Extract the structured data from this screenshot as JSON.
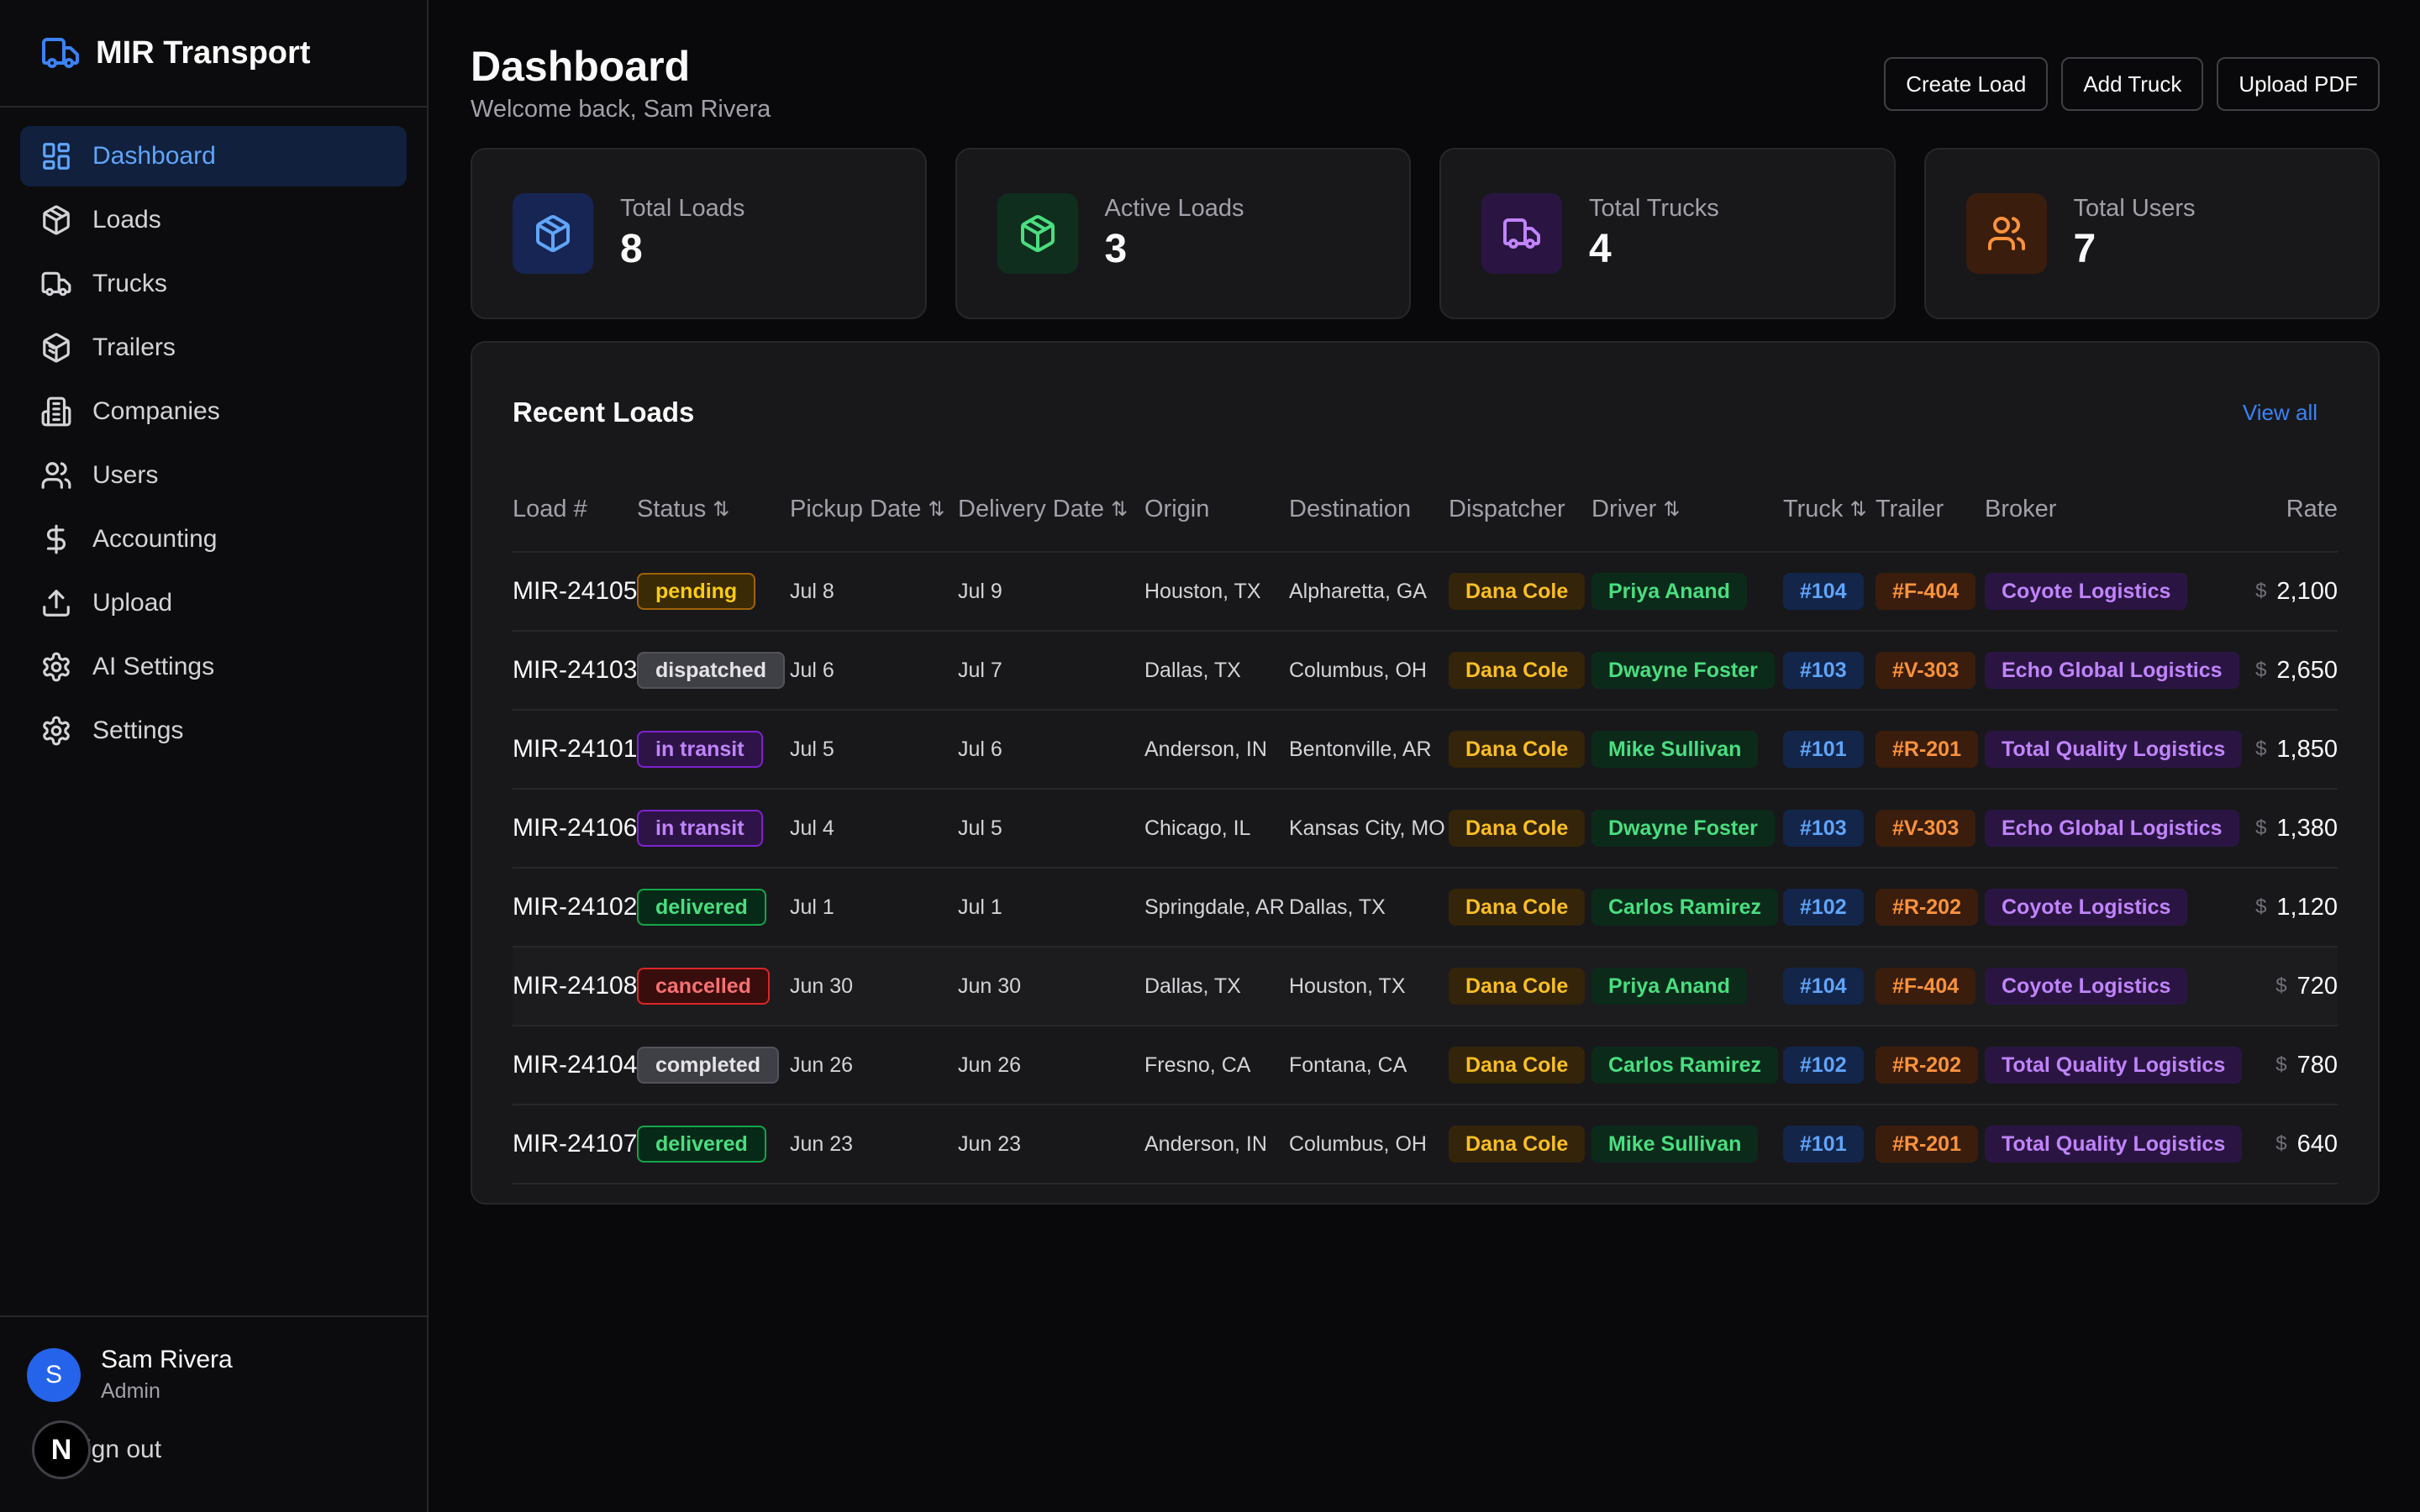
{
  "brand": {
    "name": "MIR Transport"
  },
  "sidebar": {
    "items": [
      {
        "label": "Dashboard",
        "icon": "dashboard-icon",
        "active": true
      },
      {
        "label": "Loads",
        "icon": "package-icon"
      },
      {
        "label": "Trucks",
        "icon": "truck-icon"
      },
      {
        "label": "Trailers",
        "icon": "trailer-icon"
      },
      {
        "label": "Companies",
        "icon": "building-icon"
      },
      {
        "label": "Users",
        "icon": "users-icon"
      },
      {
        "label": "Accounting",
        "icon": "dollar-icon"
      },
      {
        "label": "Upload",
        "icon": "upload-icon"
      },
      {
        "label": "AI Settings",
        "icon": "gear-icon"
      },
      {
        "label": "Settings",
        "icon": "gear-icon"
      }
    ],
    "user": {
      "initial": "S",
      "name": "Sam Rivera",
      "role": "Admin"
    },
    "signout": "Sign out",
    "signout_visible": "ign out",
    "overlay_badge": "N"
  },
  "header": {
    "title": "Dashboard",
    "subtitle": "Welcome back, Sam Rivera",
    "actions": {
      "create_load": "Create Load",
      "add_truck": "Add Truck",
      "upload_pdf": "Upload PDF"
    }
  },
  "stats": [
    {
      "label": "Total Loads",
      "value": "8",
      "icon": "package-icon",
      "color": "#60a5fa",
      "bg": "#172554"
    },
    {
      "label": "Active Loads",
      "value": "3",
      "icon": "package-icon",
      "color": "#4ade80",
      "bg": "#0f2e1d"
    },
    {
      "label": "Total Trucks",
      "value": "4",
      "icon": "truck-icon",
      "color": "#c084fc",
      "bg": "#2a1542"
    },
    {
      "label": "Total Users",
      "value": "7",
      "icon": "users-icon",
      "color": "#fb923c",
      "bg": "#3a1d0c"
    }
  ],
  "recent": {
    "title": "Recent Loads",
    "view_all": "View all",
    "columns": {
      "load": "Load #",
      "status": "Status",
      "pickup": "Pickup Date",
      "delivery": "Delivery Date",
      "origin": "Origin",
      "destination": "Destination",
      "dispatcher": "Dispatcher",
      "driver": "Driver",
      "truck": "Truck",
      "trailer": "Trailer",
      "broker": "Broker",
      "rate": "Rate"
    },
    "sort_glyph": "⇅",
    "currency": "$",
    "rows": [
      {
        "load": "MIR-24105",
        "status": "pending",
        "pickup": "Jul 8",
        "delivery": "Jul 9",
        "origin": "Houston, TX",
        "destination": "Alpharetta, GA",
        "dispatcher": "Dana Cole",
        "driver": "Priya Anand",
        "truck": "#104",
        "trailer": "#F-404",
        "broker": "Coyote Logistics",
        "rate": "2,100"
      },
      {
        "load": "MIR-24103",
        "status": "dispatched",
        "pickup": "Jul 6",
        "delivery": "Jul 7",
        "origin": "Dallas, TX",
        "destination": "Columbus, OH",
        "dispatcher": "Dana Cole",
        "driver": "Dwayne Foster",
        "truck": "#103",
        "trailer": "#V-303",
        "broker": "Echo Global Logistics",
        "rate": "2,650"
      },
      {
        "load": "MIR-24101",
        "status": "in transit",
        "pickup": "Jul 5",
        "delivery": "Jul 6",
        "origin": "Anderson, IN",
        "destination": "Bentonville, AR",
        "dispatcher": "Dana Cole",
        "driver": "Mike Sullivan",
        "truck": "#101",
        "trailer": "#R-201",
        "broker": "Total Quality Logistics",
        "rate": "1,850"
      },
      {
        "load": "MIR-24106",
        "status": "in transit",
        "pickup": "Jul 4",
        "delivery": "Jul 5",
        "origin": "Chicago, IL",
        "destination": "Kansas City, MO",
        "dispatcher": "Dana Cole",
        "driver": "Dwayne Foster",
        "truck": "#103",
        "trailer": "#V-303",
        "broker": "Echo Global Logistics",
        "rate": "1,380"
      },
      {
        "load": "MIR-24102",
        "status": "delivered",
        "pickup": "Jul 1",
        "delivery": "Jul 1",
        "origin": "Springdale, AR",
        "destination": "Dallas, TX",
        "dispatcher": "Dana Cole",
        "driver": "Carlos Ramirez",
        "truck": "#102",
        "trailer": "#R-202",
        "broker": "Coyote Logistics",
        "rate": "1,120"
      },
      {
        "load": "MIR-24108",
        "status": "cancelled",
        "pickup": "Jun 30",
        "delivery": "Jun 30",
        "origin": "Dallas, TX",
        "destination": "Houston, TX",
        "dispatcher": "Dana Cole",
        "driver": "Priya Anand",
        "truck": "#104",
        "trailer": "#F-404",
        "broker": "Coyote Logistics",
        "rate": "720"
      },
      {
        "load": "MIR-24104",
        "status": "completed",
        "pickup": "Jun 26",
        "delivery": "Jun 26",
        "origin": "Fresno, CA",
        "destination": "Fontana, CA",
        "dispatcher": "Dana Cole",
        "driver": "Carlos Ramirez",
        "truck": "#102",
        "trailer": "#R-202",
        "broker": "Total Quality Logistics",
        "rate": "780"
      },
      {
        "load": "MIR-24107",
        "status": "delivered",
        "pickup": "Jun 23",
        "delivery": "Jun 23",
        "origin": "Anderson, IN",
        "destination": "Columbus, OH",
        "dispatcher": "Dana Cole",
        "driver": "Mike Sullivan",
        "truck": "#101",
        "trailer": "#R-201",
        "broker": "Total Quality Logistics",
        "rate": "640"
      }
    ]
  }
}
